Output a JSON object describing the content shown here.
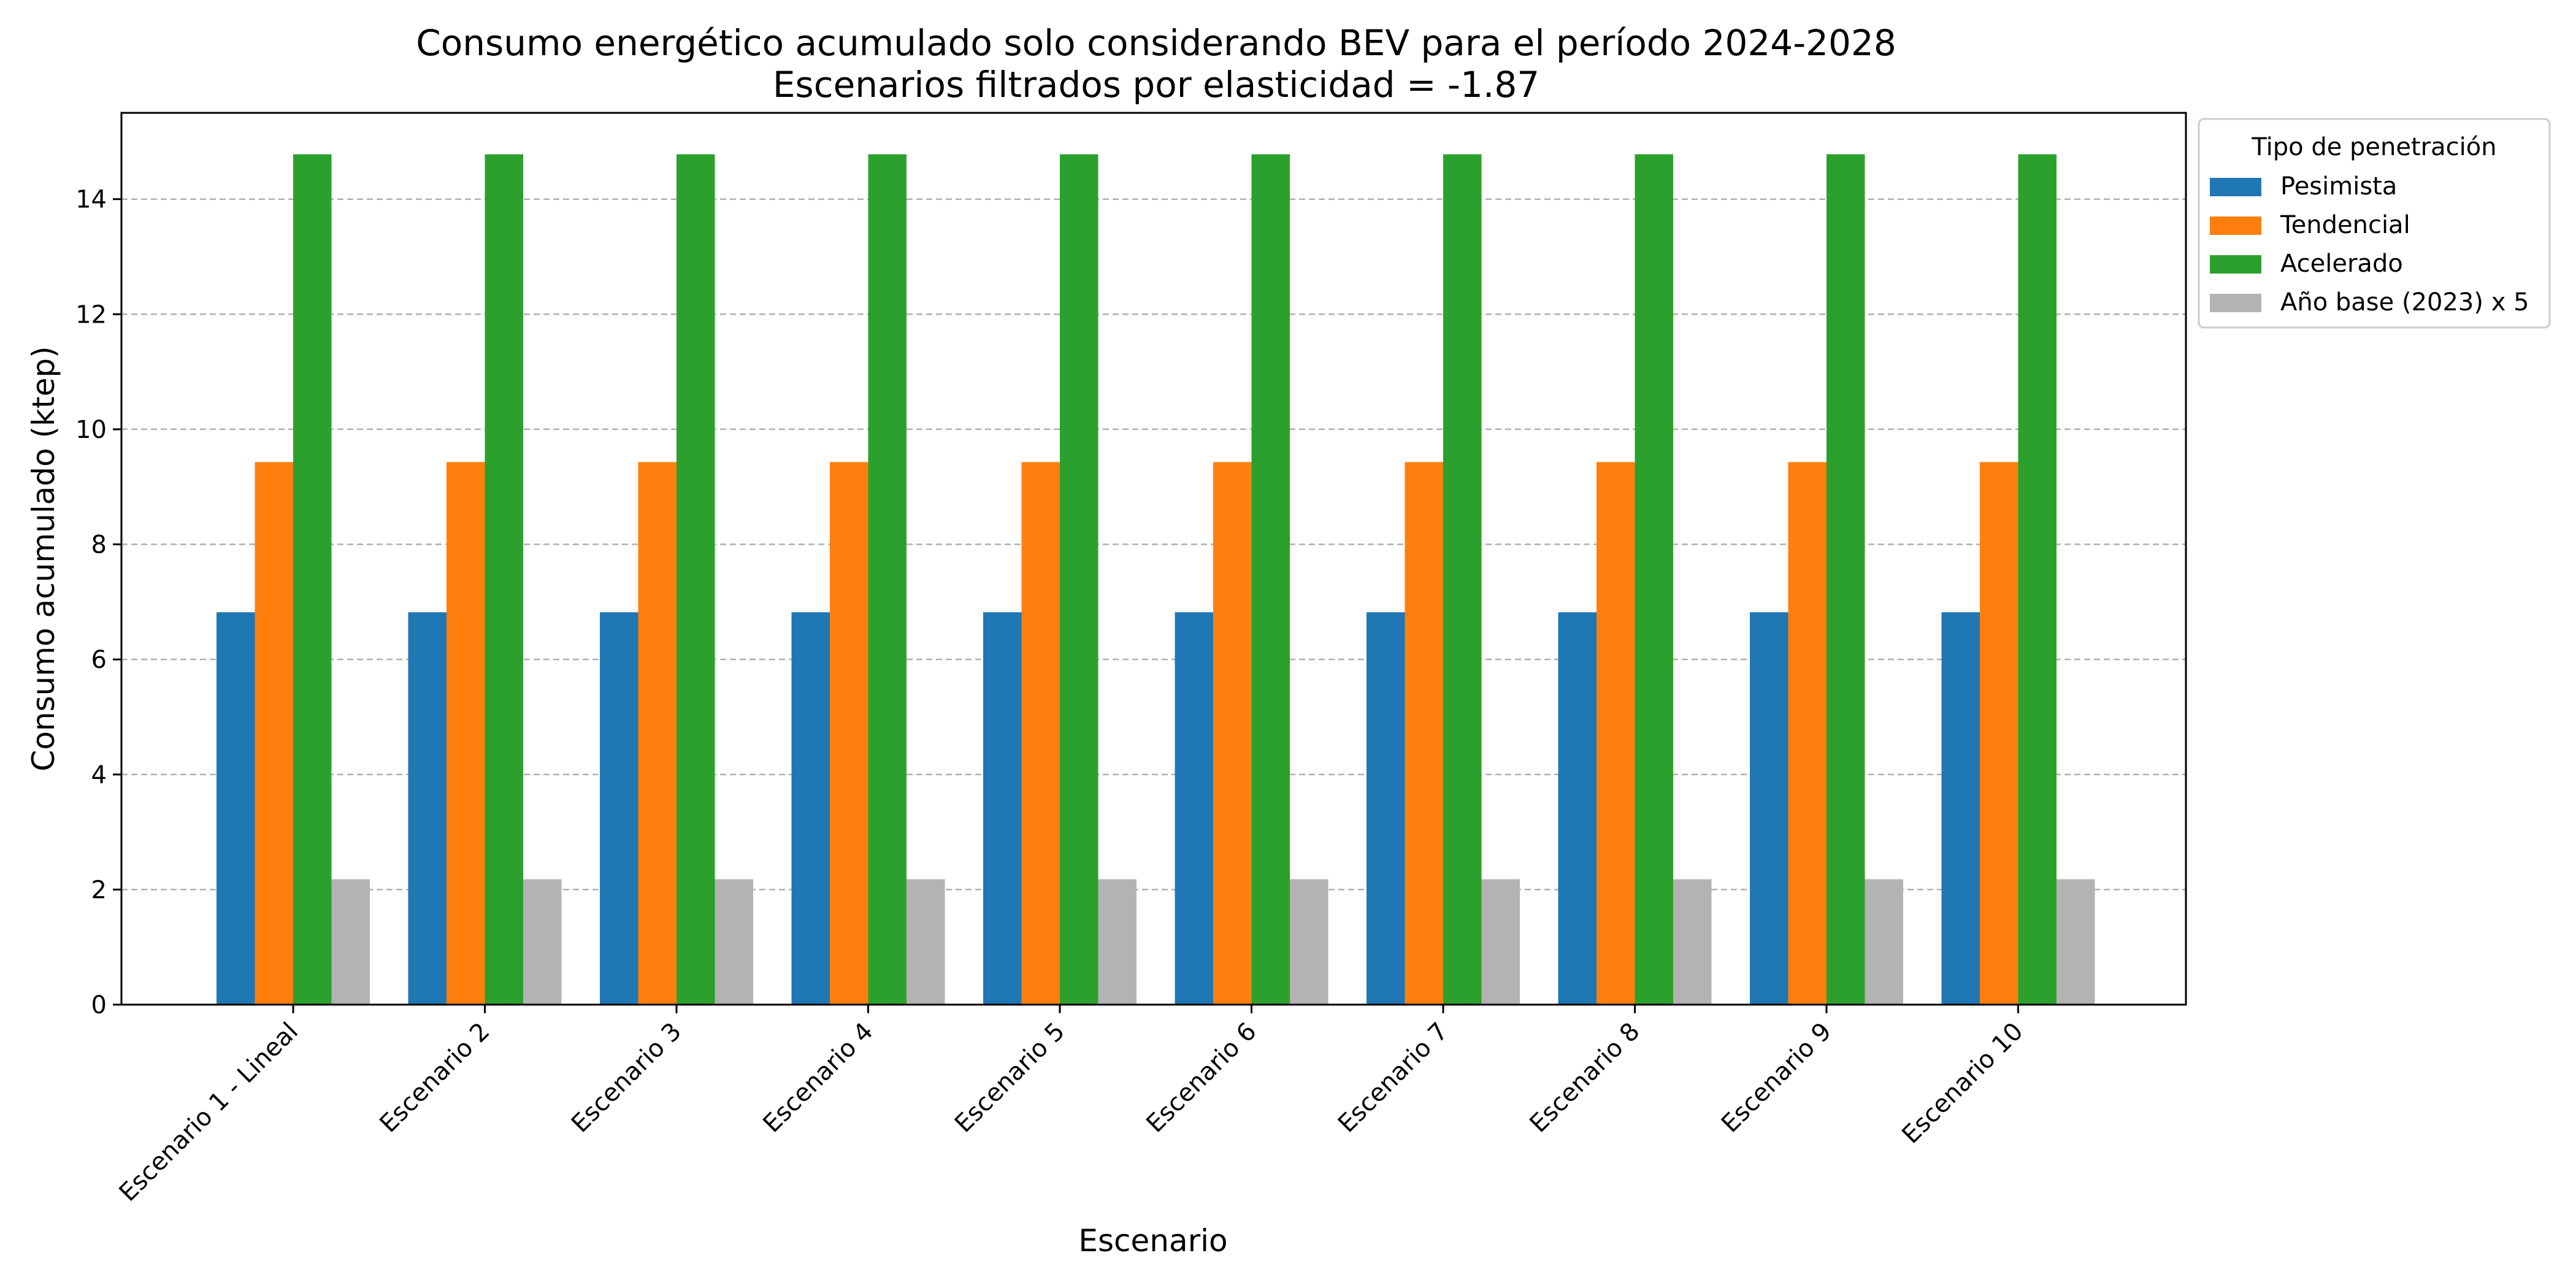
{
  "chart_data": {
    "type": "bar",
    "title_line1": "Consumo energético acumulado solo considerando BEV para el período 2024-2028",
    "title_line2": "Escenarios filtrados por elasticidad = -1.87",
    "xlabel": "Escenario",
    "ylabel": "Consumo acumulado (ktep)",
    "ylim": [
      0,
      15.5
    ],
    "yticks": [
      0,
      2,
      4,
      6,
      8,
      10,
      12,
      14
    ],
    "grid": "y-dashed",
    "legend_title": "Tipo de penetración",
    "legend_position": "outside-top-right",
    "categories": [
      "Escenario 1 - Lineal",
      "Escenario 2",
      "Escenario 3",
      "Escenario 4",
      "Escenario 5",
      "Escenario 6",
      "Escenario 7",
      "Escenario 8",
      "Escenario 9",
      "Escenario 10"
    ],
    "series": [
      {
        "name": "Pesimista",
        "color": "#1f77b4",
        "values": [
          6.82,
          6.82,
          6.82,
          6.82,
          6.82,
          6.82,
          6.82,
          6.82,
          6.82,
          6.82
        ]
      },
      {
        "name": "Tendencial",
        "color": "#ff7f0e",
        "values": [
          9.43,
          9.43,
          9.43,
          9.43,
          9.43,
          9.43,
          9.43,
          9.43,
          9.43,
          9.43
        ]
      },
      {
        "name": "Acelerado",
        "color": "#2ca02c",
        "values": [
          14.78,
          14.78,
          14.78,
          14.78,
          14.78,
          14.78,
          14.78,
          14.78,
          14.78,
          14.78
        ]
      },
      {
        "name": "Año base (2023) x 5",
        "color": "#b3b3b3",
        "values": [
          2.18,
          2.18,
          2.18,
          2.18,
          2.18,
          2.18,
          2.18,
          2.18,
          2.18,
          2.18
        ]
      }
    ]
  }
}
